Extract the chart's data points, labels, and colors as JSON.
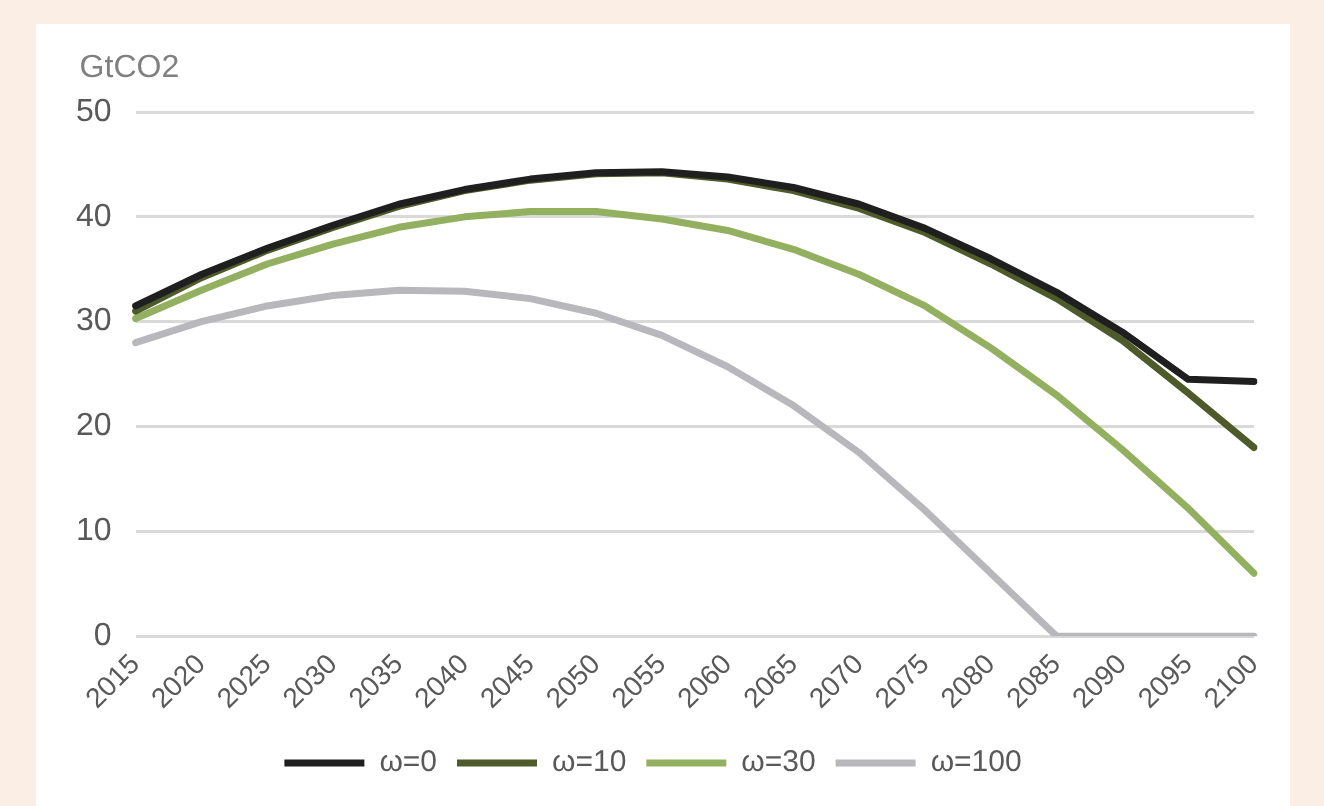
{
  "chart_data": {
    "type": "line",
    "ylabel": "GtCO2",
    "categories": [
      "2015",
      "2020",
      "2025",
      "2030",
      "2035",
      "2040",
      "2045",
      "2050",
      "2055",
      "2060",
      "2065",
      "2070",
      "2075",
      "2080",
      "2085",
      "2090",
      "2095",
      "2100"
    ],
    "series": [
      {
        "name": "ω=0",
        "color": "#1f1f1f",
        "values": [
          31.5,
          34.5,
          37,
          39.2,
          41.2,
          42.6,
          43.6,
          44.2,
          44.3,
          43.8,
          42.8,
          41.2,
          38.9,
          36,
          32.8,
          29,
          24.5,
          24.3
        ]
      },
      {
        "name": "ω=10",
        "color": "#4f5a2a",
        "values": [
          31,
          34.2,
          36.8,
          39,
          41,
          42.5,
          43.5,
          44.1,
          44.2,
          43.6,
          42.5,
          40.8,
          38.5,
          35.5,
          32.2,
          28.2,
          23.2,
          18
        ]
      },
      {
        "name": "ω=30",
        "color": "#93b060",
        "values": [
          30.3,
          33,
          35.5,
          37.4,
          39,
          40,
          40.5,
          40.5,
          39.8,
          38.7,
          36.9,
          34.5,
          31.5,
          27.5,
          23,
          17.8,
          12.2,
          6
        ]
      },
      {
        "name": "ω=100",
        "color": "#b8b8bc",
        "values": [
          28,
          30,
          31.5,
          32.5,
          33,
          32.9,
          32.2,
          30.8,
          28.7,
          25.7,
          22,
          17.5,
          12,
          6,
          0,
          0,
          0,
          0
        ]
      }
    ],
    "ylim": [
      0,
      50
    ],
    "yticks": [
      0,
      10,
      20,
      30,
      40,
      50
    ],
    "grid": "y",
    "legend": "bottom",
    "marker": "none",
    "line_style": "solid"
  }
}
